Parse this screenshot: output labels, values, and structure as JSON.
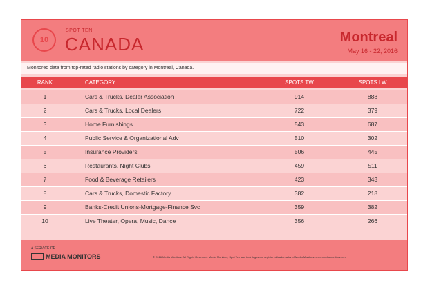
{
  "header": {
    "badge": "10",
    "kicker": "SPOT TEN",
    "title": "CANADA",
    "city": "Montreal",
    "dates": "May 16 - 22, 2016"
  },
  "note": "Monitored data from top-rated radio stations by category in Montreal, Canada.",
  "table": {
    "columns": [
      "RANK",
      "CATEGORY",
      "SPOTS TW",
      "SPOTS LW"
    ],
    "rows": [
      [
        1,
        "Cars & Trucks, Dealer Association",
        914,
        888
      ],
      [
        2,
        "Cars & Trucks, Local Dealers",
        722,
        379
      ],
      [
        3,
        "Home Furnishings",
        543,
        687
      ],
      [
        4,
        "Public Service & Organizational Adv",
        510,
        302
      ],
      [
        5,
        "Insurance Providers",
        506,
        445
      ],
      [
        6,
        "Restaurants, Night Clubs",
        459,
        511
      ],
      [
        7,
        "Food & Beverage Retailers",
        423,
        343
      ],
      [
        8,
        "Cars & Trucks, Domestic Factory",
        382,
        218
      ],
      [
        9,
        "Banks-Credit Unions-Mortgage-Finance Svc",
        359,
        382
      ],
      [
        10,
        "Live Theater, Opera, Music, Dance",
        356,
        266
      ]
    ]
  },
  "footer": {
    "service": "A SERVICE OF",
    "brand": "MEDIA MONITORS",
    "copyright": "© 2016 Media Monitors.  All Rights Reserved.  Media Monitors, Spot Ten and their logos are registered trademarks of Media Monitors.  www.mediamonitors.com"
  }
}
